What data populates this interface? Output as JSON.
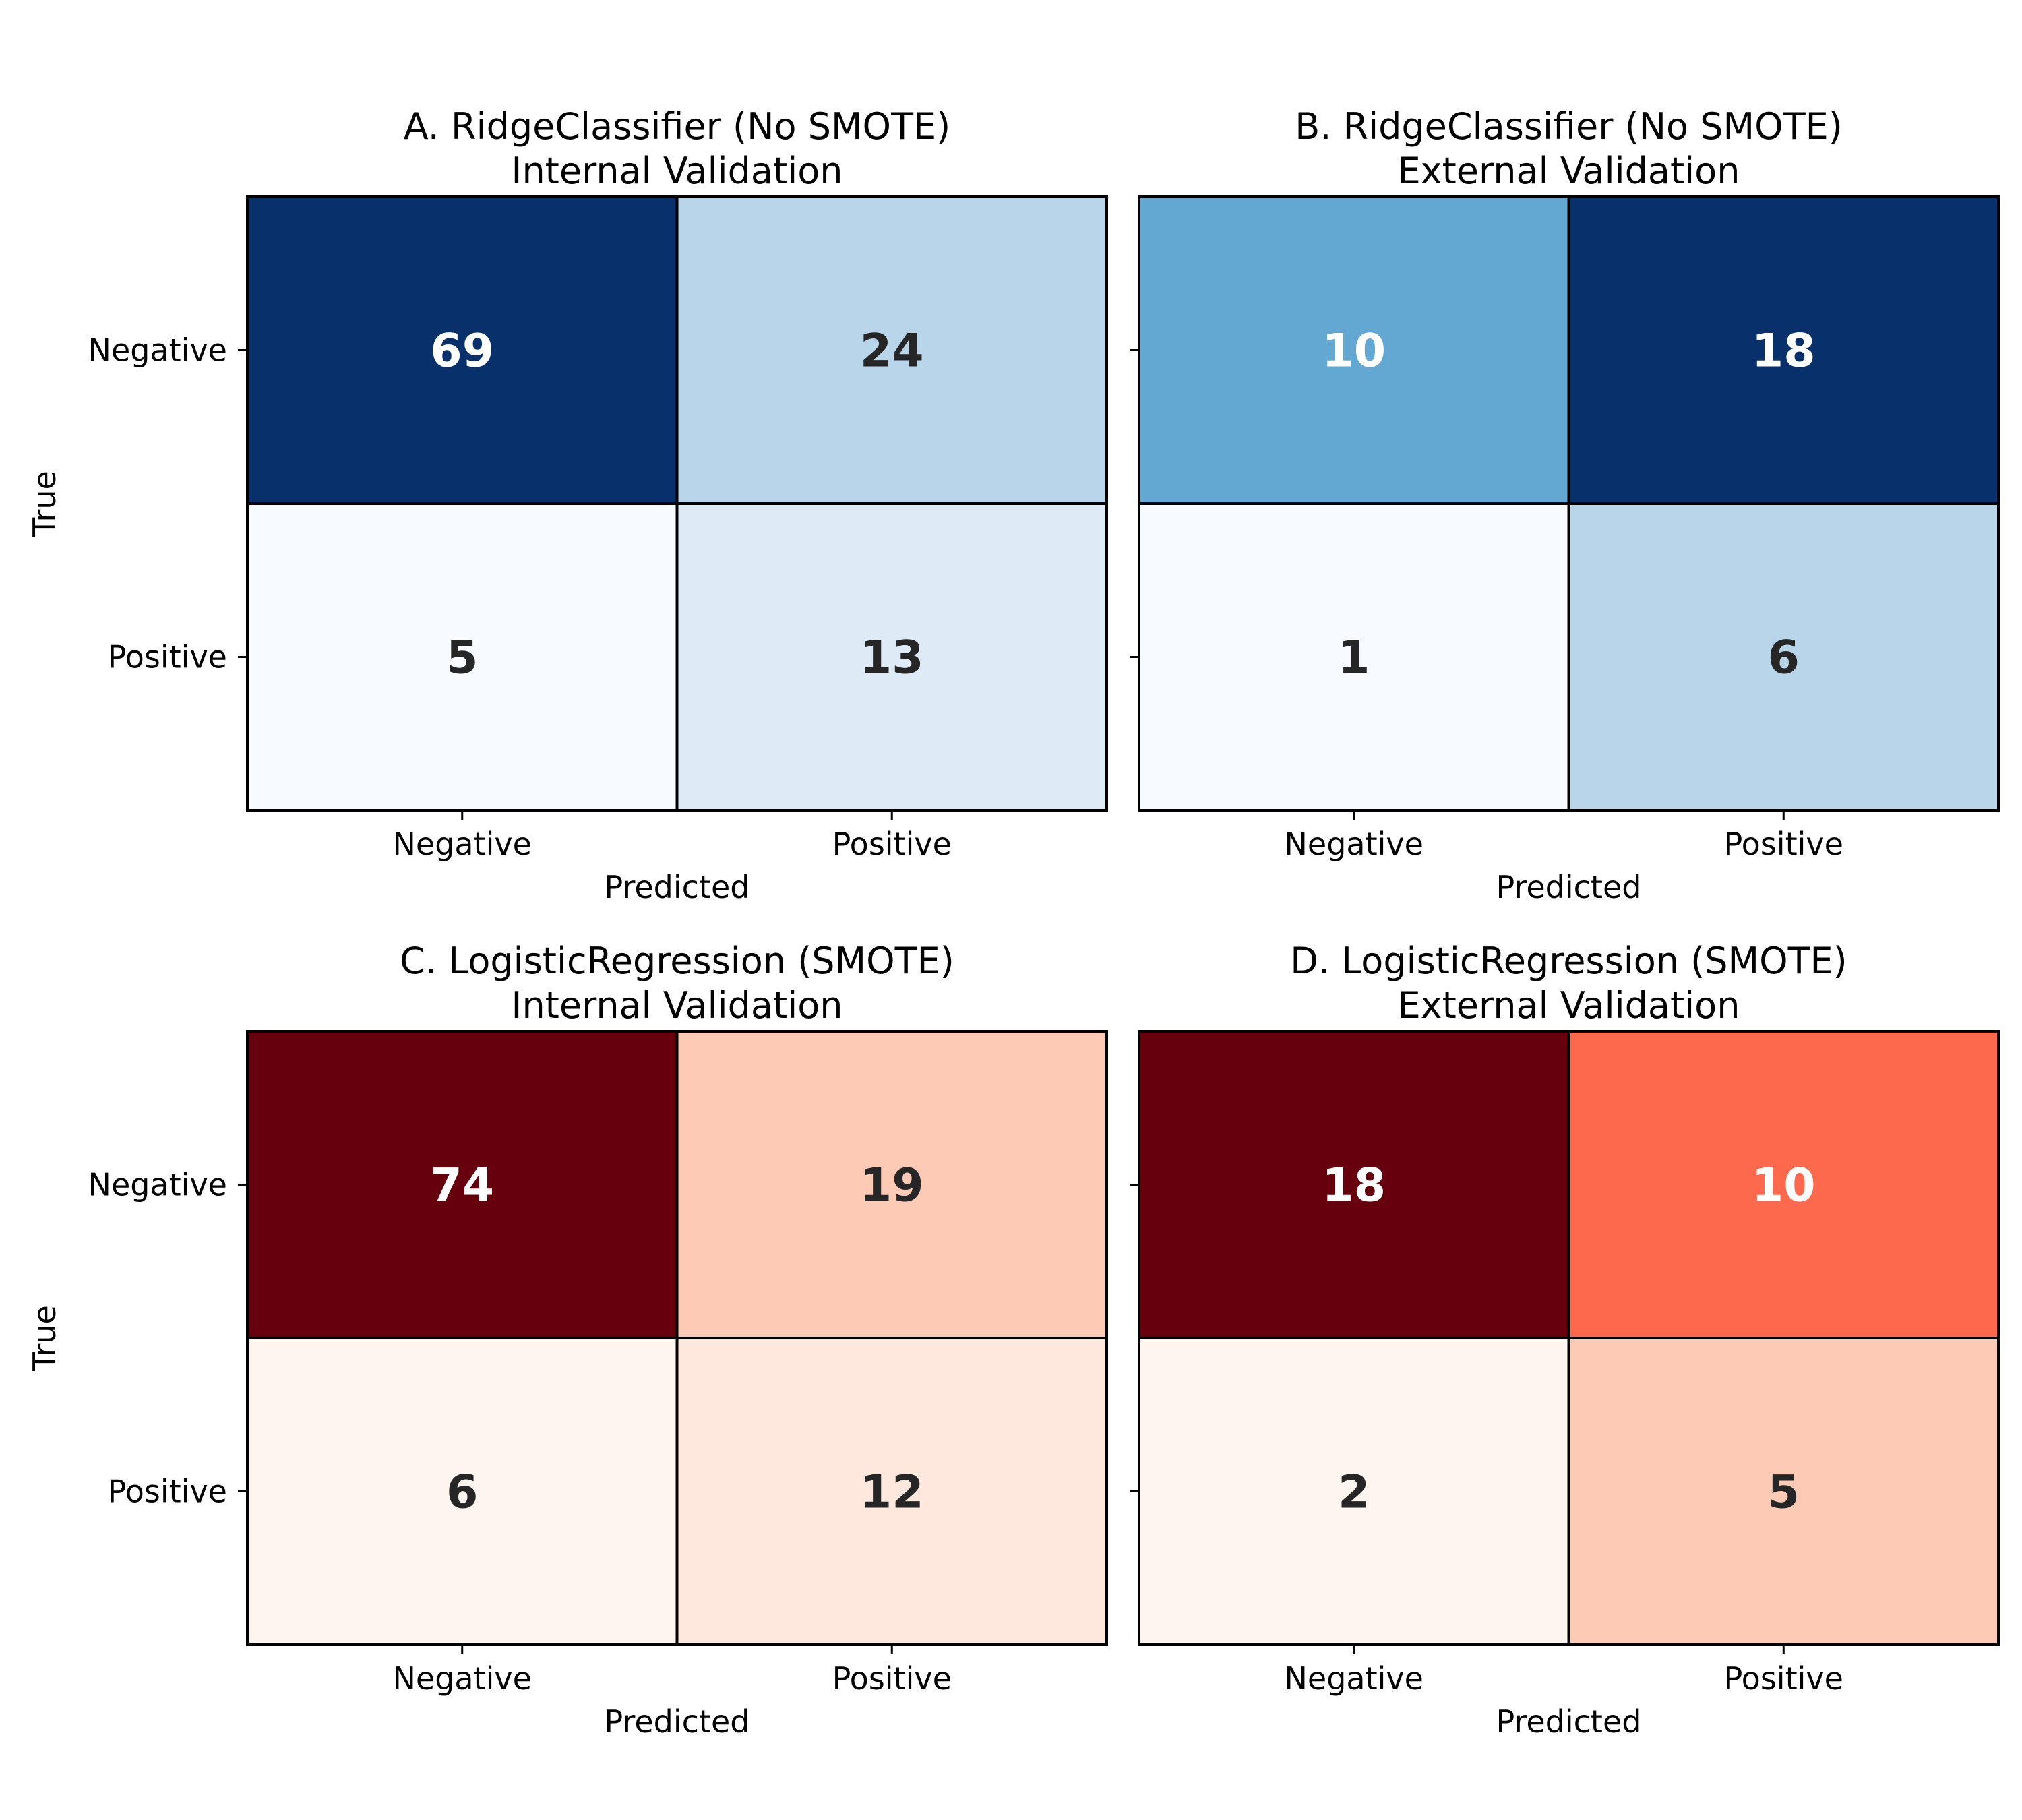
{
  "chart_data": [
    {
      "type": "heatmap",
      "title_lines": [
        "A. RidgeClassifier (No SMOTE)",
        "Internal Validation"
      ],
      "xlabel": "Predicted",
      "ylabel": "True",
      "x_categories": [
        "Negative",
        "Positive"
      ],
      "y_categories": [
        "Negative",
        "Positive"
      ],
      "matrix": [
        [
          69,
          24
        ],
        [
          5,
          13
        ]
      ],
      "colormap": "blues",
      "cell_colors": [
        [
          "#08306b",
          "#b8d5ea"
        ],
        [
          "#f7fbff",
          "#deebf7"
        ]
      ],
      "label_colors": [
        [
          "#ffffff",
          "#262626"
        ],
        [
          "#262626",
          "#262626"
        ]
      ]
    },
    {
      "type": "heatmap",
      "title_lines": [
        "B. RidgeClassifier (No SMOTE)",
        "External Validation"
      ],
      "xlabel": "Predicted",
      "ylabel": "",
      "x_categories": [
        "Negative",
        "Positive"
      ],
      "y_categories": [],
      "matrix": [
        [
          10,
          18
        ],
        [
          1,
          6
        ]
      ],
      "colormap": "blues",
      "cell_colors": [
        [
          "#63a8d2",
          "#08306b"
        ],
        [
          "#f7fbff",
          "#b8d5ea"
        ]
      ],
      "label_colors": [
        [
          "#ffffff",
          "#ffffff"
        ],
        [
          "#262626",
          "#262626"
        ]
      ]
    },
    {
      "type": "heatmap",
      "title_lines": [
        "C. LogisticRegression (SMOTE)",
        "Internal Validation"
      ],
      "xlabel": "Predicted",
      "ylabel": "True",
      "x_categories": [
        "Negative",
        "Positive"
      ],
      "y_categories": [
        "Negative",
        "Positive"
      ],
      "matrix": [
        [
          74,
          19
        ],
        [
          6,
          12
        ]
      ],
      "colormap": "reds",
      "cell_colors": [
        [
          "#67000d",
          "#fdcab5"
        ],
        [
          "#fff5f0",
          "#fee8de"
        ]
      ],
      "label_colors": [
        [
          "#ffffff",
          "#262626"
        ],
        [
          "#262626",
          "#262626"
        ]
      ]
    },
    {
      "type": "heatmap",
      "title_lines": [
        "D. LogisticRegression (SMOTE)",
        "External Validation"
      ],
      "xlabel": "Predicted",
      "ylabel": "",
      "x_categories": [
        "Negative",
        "Positive"
      ],
      "y_categories": [],
      "matrix": [
        [
          18,
          10
        ],
        [
          2,
          5
        ]
      ],
      "colormap": "reds",
      "cell_colors": [
        [
          "#67000d",
          "#fc694c"
        ],
        [
          "#fff5f0",
          "#fdcab5"
        ]
      ],
      "label_colors": [
        [
          "#ffffff",
          "#ffffff"
        ],
        [
          "#262626",
          "#262626"
        ]
      ]
    }
  ]
}
